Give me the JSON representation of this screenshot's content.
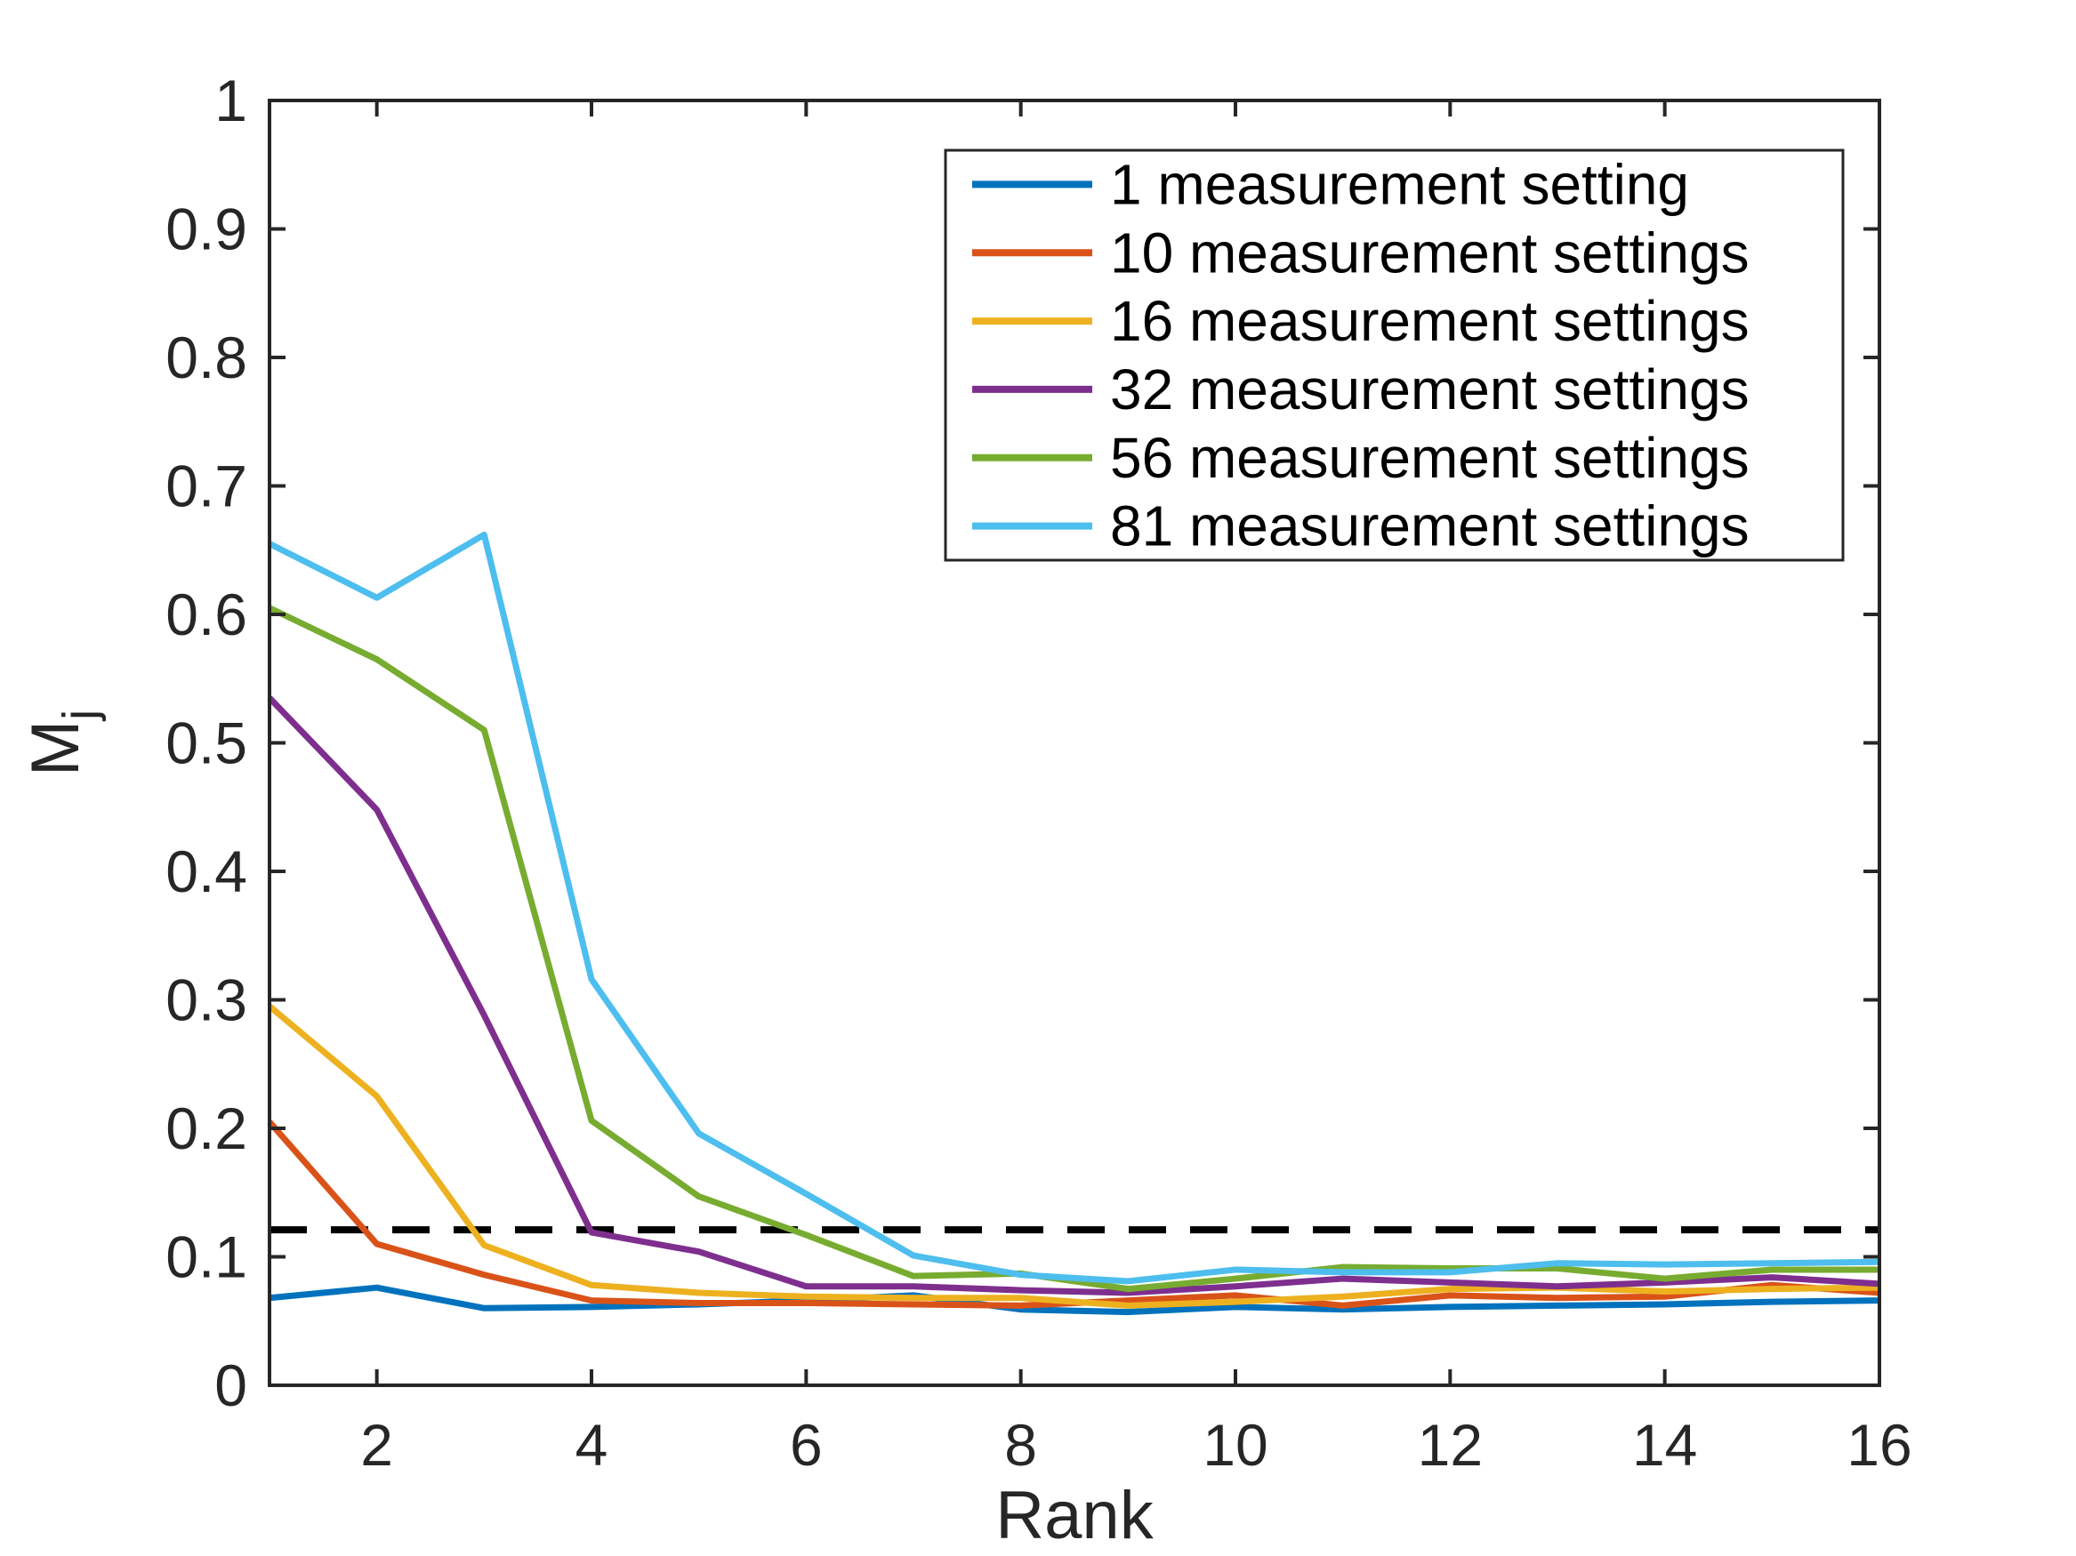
{
  "figure": {
    "background": "#ffffff",
    "axis_color": "#262626",
    "xlabel": "Rank",
    "ylabel_main": "M",
    "ylabel_sub": "j"
  },
  "chart_data": {
    "type": "line",
    "title": "",
    "xlabel": "Rank",
    "ylabel": "M_j",
    "xlim": [
      1,
      16
    ],
    "ylim": [
      0,
      1
    ],
    "grid": false,
    "legend_position": "top-right-inside",
    "x": [
      1,
      2,
      3,
      4,
      5,
      6,
      7,
      8,
      9,
      10,
      11,
      12,
      13,
      14,
      15,
      16
    ],
    "xticks": [
      2,
      4,
      6,
      8,
      10,
      12,
      14,
      16
    ],
    "xtick_labels": [
      "2",
      "4",
      "6",
      "8",
      "10",
      "12",
      "14",
      "16"
    ],
    "yticks": [
      0,
      0.1,
      0.2,
      0.3,
      0.4,
      0.5,
      0.6,
      0.7,
      0.8,
      0.9,
      1
    ],
    "ytick_labels": [
      "0",
      "0.1",
      "0.2",
      "0.3",
      "0.4",
      "0.5",
      "0.6",
      "0.7",
      "0.8",
      "0.9",
      "1"
    ],
    "threshold_line": {
      "y": 0.121,
      "style": "dashed",
      "color": "#000000"
    },
    "series": [
      {
        "name": "1 measurement setting",
        "color": "#0072BD",
        "values": [
          0.068,
          0.076,
          0.06,
          0.061,
          0.063,
          0.066,
          0.07,
          0.059,
          0.057,
          0.061,
          0.059,
          0.061,
          0.062,
          0.063,
          0.065,
          0.066
        ]
      },
      {
        "name": "10 measurement settings",
        "color": "#D95319",
        "values": [
          0.205,
          0.11,
          0.086,
          0.066,
          0.064,
          0.064,
          0.063,
          0.062,
          0.066,
          0.07,
          0.062,
          0.07,
          0.068,
          0.069,
          0.078,
          0.072
        ]
      },
      {
        "name": "16 measurement settings",
        "color": "#EDB120",
        "values": [
          0.295,
          0.225,
          0.109,
          0.078,
          0.072,
          0.069,
          0.068,
          0.068,
          0.062,
          0.065,
          0.069,
          0.075,
          0.076,
          0.073,
          0.075,
          0.076
        ]
      },
      {
        "name": "32 measurement settings",
        "color": "#7E2F8E",
        "values": [
          0.535,
          0.448,
          0.288,
          0.119,
          0.104,
          0.077,
          0.077,
          0.074,
          0.072,
          0.077,
          0.083,
          0.08,
          0.077,
          0.08,
          0.084,
          0.079
        ]
      },
      {
        "name": "56 measurement settings",
        "color": "#77AC30",
        "values": [
          0.605,
          0.565,
          0.51,
          0.206,
          0.147,
          0.117,
          0.085,
          0.087,
          0.075,
          0.083,
          0.092,
          0.091,
          0.091,
          0.083,
          0.09,
          0.09
        ]
      },
      {
        "name": "81 measurement settings",
        "color": "#4DBEEE",
        "values": [
          0.655,
          0.613,
          0.662,
          0.316,
          0.196,
          0.149,
          0.101,
          0.086,
          0.081,
          0.09,
          0.088,
          0.088,
          0.095,
          0.094,
          0.095,
          0.096
        ]
      }
    ]
  }
}
